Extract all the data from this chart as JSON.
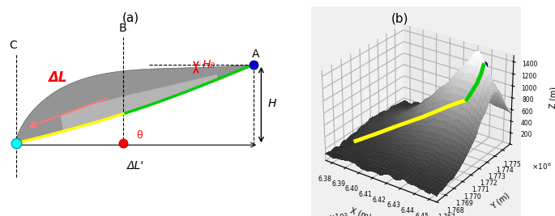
{
  "panel_a_label": "(a)",
  "panel_b_label": "(b)",
  "point_A_label": "A",
  "point_B_label": "B",
  "point_C_label": "C",
  "delta_L_label": "ΔL",
  "delta_L_prime_label": "ΔL'",
  "H0_label": "H₀",
  "H_label": "H",
  "theta_label": "θ",
  "color_cyan": "#00FFFF",
  "color_red": "#FF0000",
  "color_blue": "#0000CC",
  "color_green": "#00CC00",
  "color_yellow": "#FFFF00",
  "bg_color": "#ffffff"
}
